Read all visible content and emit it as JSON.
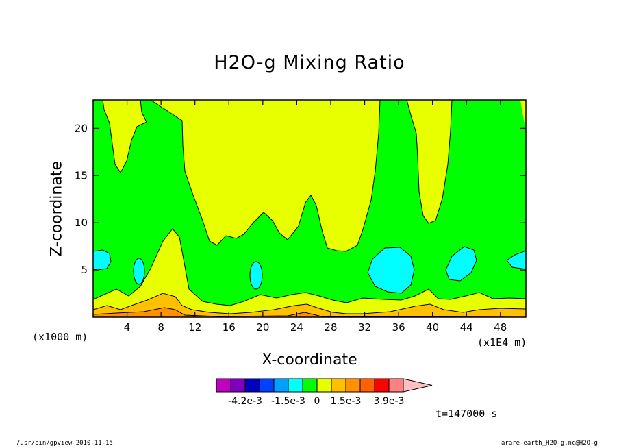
{
  "chart_data": {
    "type": "contour",
    "title": "H2O-g Mixing Ratio",
    "xlabel": "X-coordinate",
    "ylabel": "Z-coordinate",
    "x_unit_left": "(x1000 m)",
    "x_unit_right": "(x1E4 m)",
    "xlim": [
      0,
      51
    ],
    "ylim": [
      0,
      23
    ],
    "x_ticks": [
      4,
      8,
      12,
      16,
      20,
      24,
      28,
      32,
      36,
      40,
      44,
      48
    ],
    "y_ticks": [
      5,
      10,
      15,
      20
    ],
    "time_label": "t=147000 s",
    "colorbar": {
      "colors": [
        "#c000c0",
        "#8000c0",
        "#0000c0",
        "#0040ff",
        "#00a0ff",
        "#00ffff",
        "#00ff00",
        "#e8ff00",
        "#ffc000",
        "#ff9000",
        "#ff6000",
        "#ff0000",
        "#ff8080",
        "#ffc0c0"
      ],
      "labels": [
        "-4.2e-3",
        "-1.5e-3",
        "0",
        "1.5e-3",
        "3.9e-3"
      ],
      "label_after_box": [
        1,
        4,
        6,
        8,
        11
      ]
    },
    "regions": [
      {
        "level": "background",
        "color": "#00ff00"
      },
      {
        "level": "cyan",
        "color": "#00ffff"
      },
      {
        "level": "yellow",
        "color": "#e8ff00"
      },
      {
        "level": "orange",
        "color": "#ffc000"
      },
      {
        "level": "dark-orange",
        "color": "#ff9000"
      }
    ]
  },
  "footer": {
    "left": "/usr/bin/gpview   2010-11-15",
    "right": "arare-earth_H2O-g.nc@H2O-g"
  }
}
